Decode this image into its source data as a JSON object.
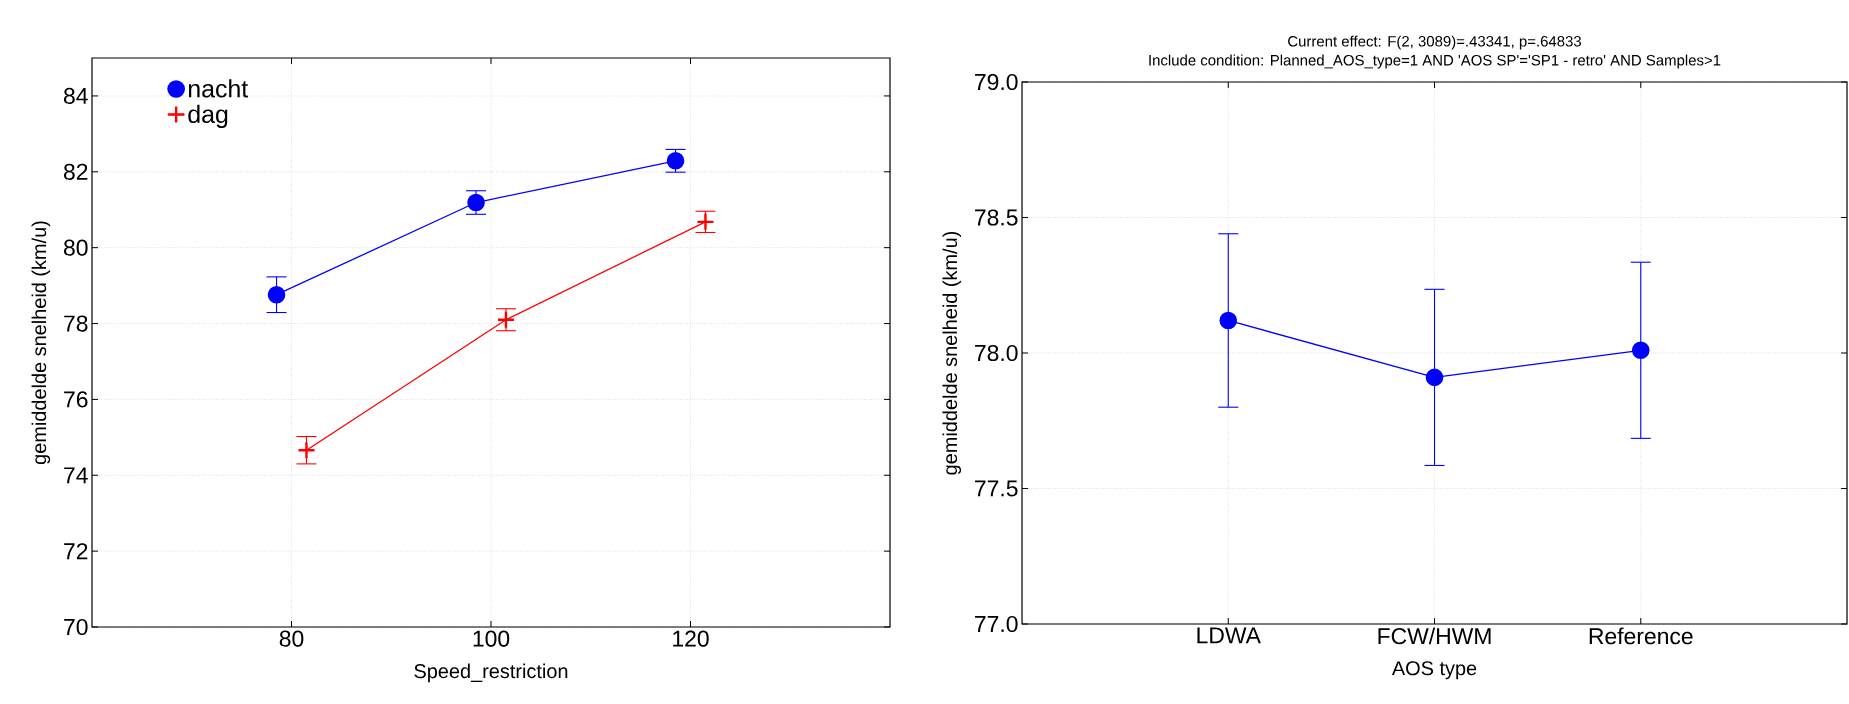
{
  "chart_data": [
    {
      "type": "line",
      "xlabel": "Speed_restriction",
      "ylabel": "gemiddelde snelheid (km/u)",
      "xlim": [
        60,
        140
      ],
      "xticks": [
        80,
        100,
        120
      ],
      "ylim": [
        70,
        85
      ],
      "yticks": [
        70,
        72,
        74,
        76,
        78,
        80,
        82,
        84
      ],
      "grid": true,
      "legend": "top left",
      "series": [
        {
          "name": "nacht",
          "color": "#0000ff",
          "marker": "circle",
          "x": [
            78.5,
            98.5,
            118.5
          ],
          "values": [
            78.76,
            81.19,
            82.29
          ],
          "errors": [
            0.47,
            0.31,
            0.3
          ]
        },
        {
          "name": "dag",
          "color": "#ff0000",
          "marker": "cross",
          "x": [
            81.5,
            101.5,
            121.5
          ],
          "values": [
            74.66,
            78.1,
            80.68
          ],
          "errors": [
            0.36,
            0.29,
            0.28
          ]
        }
      ]
    },
    {
      "type": "line",
      "title": "Current effect: F(2, 3089)=.43341, p=.64833",
      "subtitle": "Include condition: Planned_AOS_type=1 AND 'AOS SP'='SP1 - retro' AND Samples>1",
      "xlabel": "AOS type",
      "ylabel": "gemiddelde snelheid (km/u)",
      "categories": [
        "LDWA",
        "FCW/HWM",
        "Reference"
      ],
      "ylim": [
        77,
        79
      ],
      "yticks": [
        {
          "value": 77,
          "label": "77.0"
        },
        {
          "value": 77.5,
          "label": "77.5"
        },
        {
          "value": 78,
          "label": "78.0"
        },
        {
          "value": 78.5,
          "label": "78.5"
        },
        {
          "value": 79,
          "label": "79.0"
        }
      ],
      "grid": true,
      "series": [
        {
          "color": "#0000ff",
          "marker": "circle",
          "values": [
            78.12,
            77.91,
            78.01
          ],
          "errors": [
            0.32,
            0.325,
            0.325
          ]
        }
      ]
    }
  ]
}
